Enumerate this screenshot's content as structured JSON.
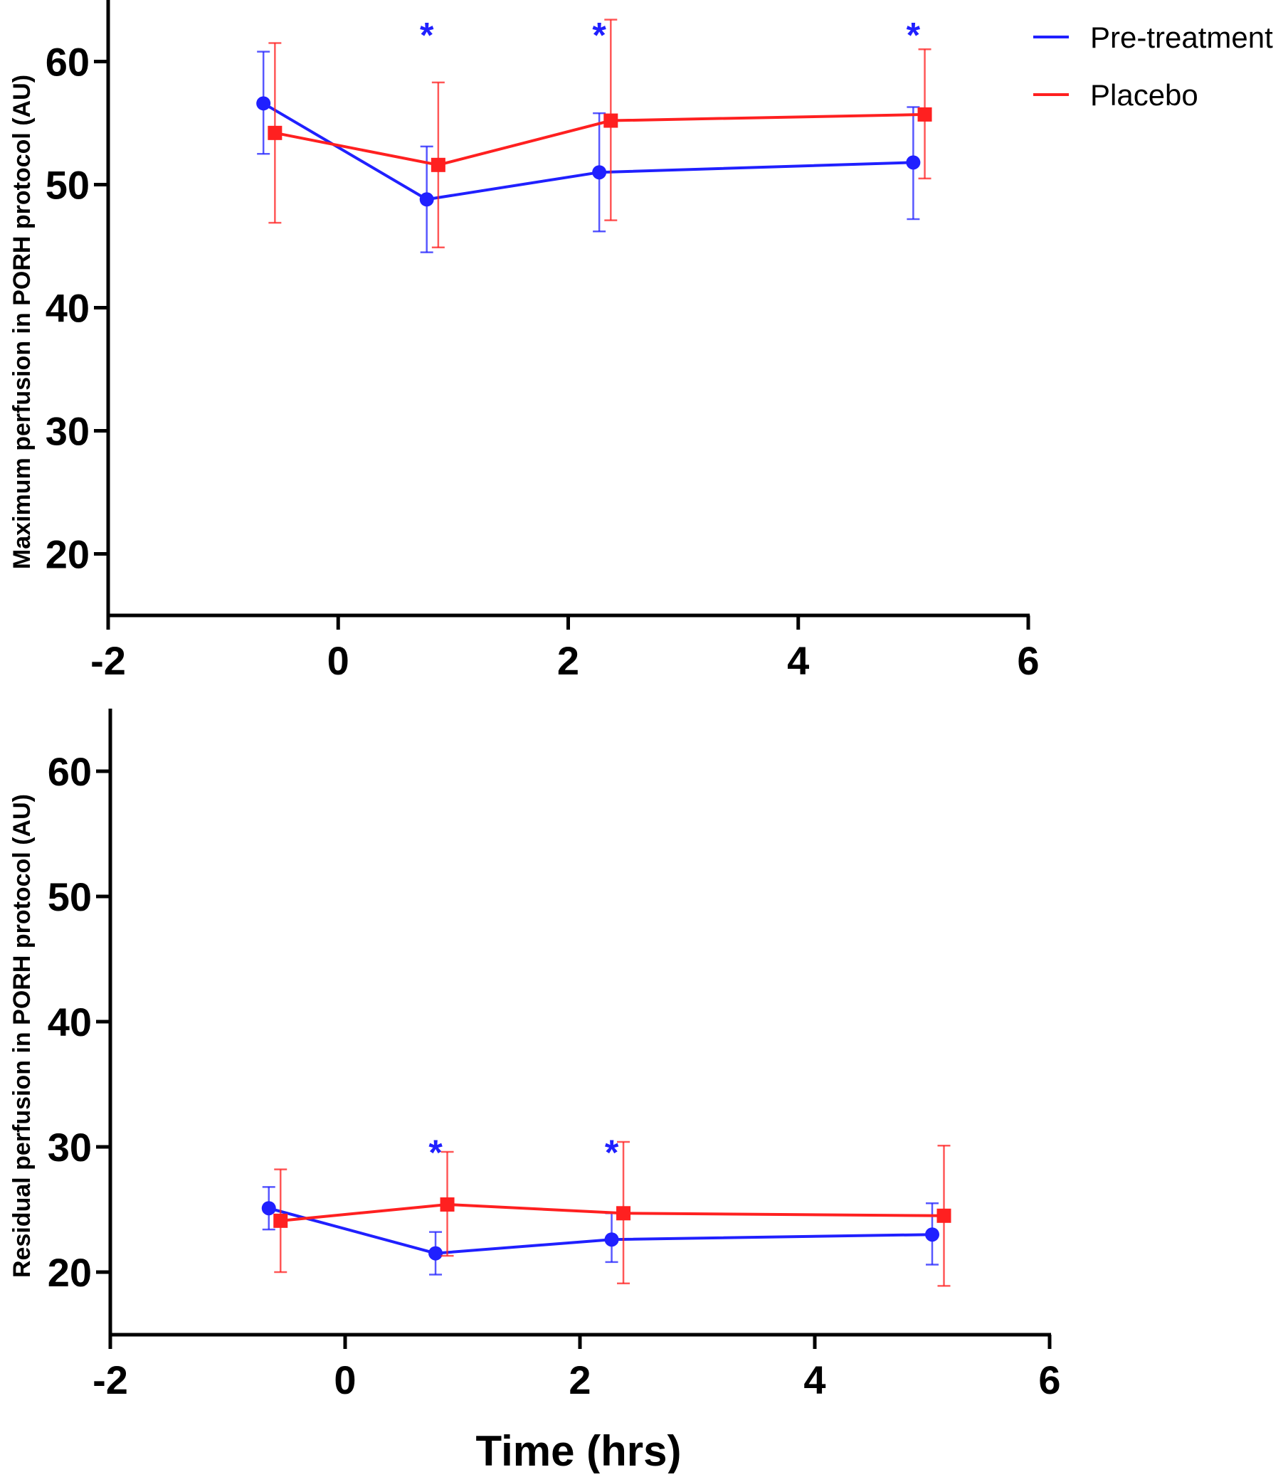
{
  "legend": {
    "position": "top-right",
    "entries": [
      {
        "label": "Pre-treatment",
        "color": "#2020ff"
      },
      {
        "label": "Placebo",
        "color": "#ff2020"
      }
    ]
  },
  "x_title": "Time (hrs)",
  "chart_data": [
    {
      "type": "line",
      "title": "",
      "xlabel": "",
      "ylabel": "Maximum perfusion in PORH protocol (AU)",
      "xlim": [
        -2,
        6
      ],
      "ylim": [
        15,
        65
      ],
      "xticks": [
        "-2",
        "0",
        "2",
        "4",
        "6"
      ],
      "yticks": [
        "20",
        "30",
        "40",
        "50",
        "60"
      ],
      "grid": false,
      "legend": "top-right",
      "series": [
        {
          "name": "Pre-treatment",
          "color": "#2020ff",
          "marker": "circle",
          "x": [
            -0.65,
            0.77,
            2.27,
            5.0
          ],
          "y": [
            56.6,
            48.8,
            51.0,
            51.8
          ],
          "err_low": [
            52.5,
            44.5,
            46.2,
            47.2
          ],
          "err_high": [
            60.8,
            53.1,
            55.8,
            56.3
          ]
        },
        {
          "name": "Placebo",
          "color": "#ff2020",
          "marker": "square",
          "x": [
            -0.55,
            0.87,
            2.37,
            5.1
          ],
          "y": [
            54.2,
            51.6,
            55.2,
            55.7
          ],
          "err_low": [
            46.9,
            44.9,
            47.1,
            50.5
          ],
          "err_high": [
            61.5,
            58.3,
            63.4,
            61.0
          ]
        }
      ],
      "annotations": [
        {
          "text": "*",
          "x": 0.77,
          "y": 63.0,
          "color": "#2020ff"
        },
        {
          "text": "*",
          "x": 2.27,
          "y": 63.0,
          "color": "#2020ff"
        },
        {
          "text": "*",
          "x": 5.0,
          "y": 63.0,
          "color": "#2020ff"
        }
      ]
    },
    {
      "type": "line",
      "title": "",
      "xlabel": "Time (hrs)",
      "ylabel": "Residual perfusion in PORH protocol (AU)",
      "xlim": [
        -2,
        6
      ],
      "ylim": [
        15,
        65
      ],
      "xticks": [
        "-2",
        "0",
        "2",
        "4",
        "6"
      ],
      "yticks": [
        "20",
        "30",
        "40",
        "50",
        "60"
      ],
      "grid": false,
      "legend": "none",
      "series": [
        {
          "name": "Pre-treatment",
          "color": "#2020ff",
          "marker": "circle",
          "x": [
            -0.65,
            0.77,
            2.27,
            5.0
          ],
          "y": [
            25.1,
            21.5,
            22.6,
            23.0
          ],
          "err_low": [
            23.4,
            19.8,
            20.8,
            20.6
          ],
          "err_high": [
            26.8,
            23.2,
            24.7,
            25.5
          ]
        },
        {
          "name": "Placebo",
          "color": "#ff2020",
          "marker": "square",
          "x": [
            -0.55,
            0.87,
            2.37,
            5.1
          ],
          "y": [
            24.1,
            25.4,
            24.7,
            24.5
          ],
          "err_low": [
            20.0,
            21.3,
            19.1,
            18.9
          ],
          "err_high": [
            28.2,
            29.6,
            30.4,
            30.1
          ]
        }
      ],
      "annotations": [
        {
          "text": "*",
          "x": 0.77,
          "y": 30.4,
          "color": "#2020ff"
        },
        {
          "text": "*",
          "x": 2.27,
          "y": 30.4,
          "color": "#2020ff"
        }
      ]
    }
  ]
}
